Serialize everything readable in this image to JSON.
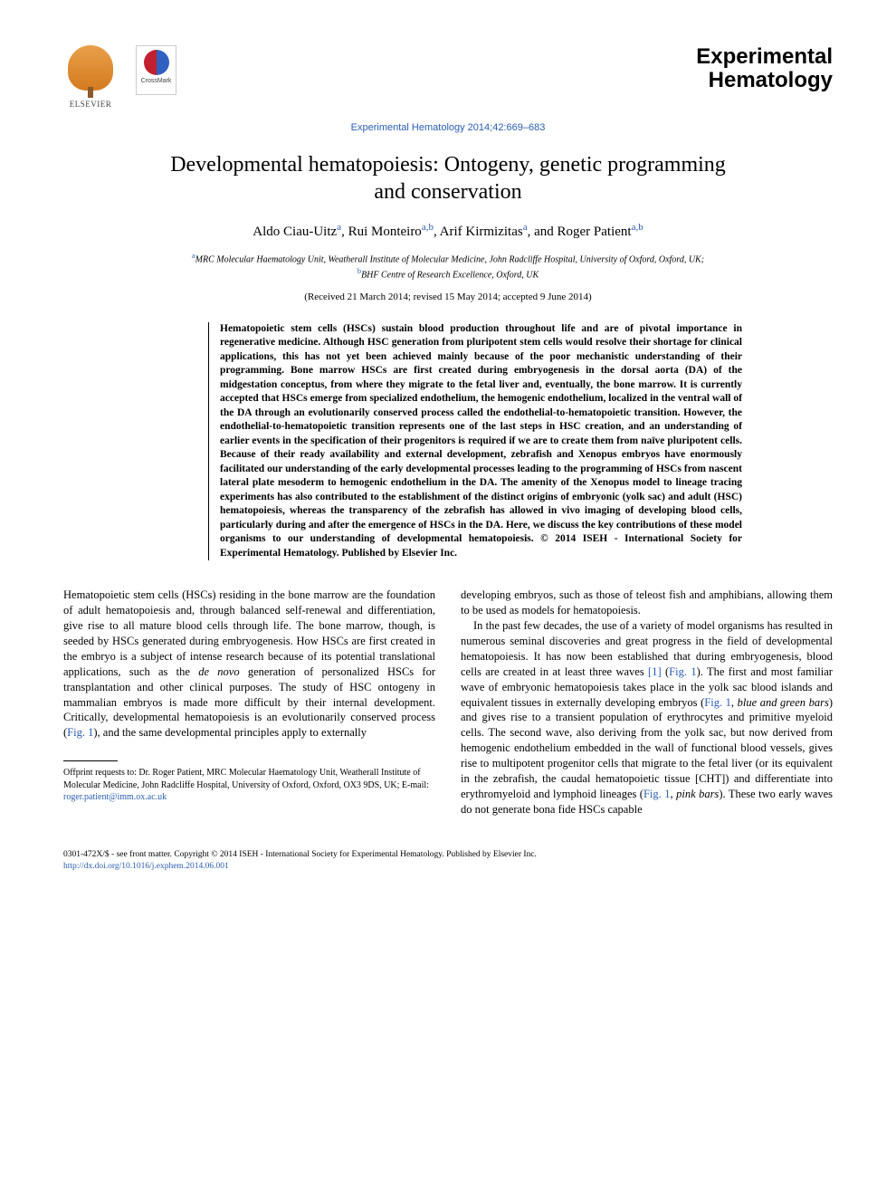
{
  "publisher_name": "ELSEVIER",
  "crossmark_label": "CrossMark",
  "journal_name_line1": "Experimental",
  "journal_name_line2": "Hematology",
  "citation": "Experimental Hematology 2014;42:669–683",
  "title": "Developmental hematopoiesis: Ontogeny, genetic programming and conservation",
  "authors": [
    {
      "name": "Aldo Ciau-Uitz",
      "affil": "a"
    },
    {
      "name": "Rui Monteiro",
      "affil": "a,b"
    },
    {
      "name": "Arif Kirmizitas",
      "affil": "a"
    },
    {
      "name": "Roger Patient",
      "affil": "a,b"
    }
  ],
  "affiliations": {
    "a": "MRC Molecular Haematology Unit, Weatherall Institute of Molecular Medicine, John Radcliffe Hospital, University of Oxford, Oxford, UK;",
    "b": "BHF Centre of Research Excellence, Oxford, UK"
  },
  "dates": "(Received 21 March 2014; revised 15 May 2014; accepted 9 June 2014)",
  "abstract": "Hematopoietic stem cells (HSCs) sustain blood production throughout life and are of pivotal importance in regenerative medicine. Although HSC generation from pluripotent stem cells would resolve their shortage for clinical applications, this has not yet been achieved mainly because of the poor mechanistic understanding of their programming. Bone marrow HSCs are first created during embryogenesis in the dorsal aorta (DA) of the midgestation conceptus, from where they migrate to the fetal liver and, eventually, the bone marrow. It is currently accepted that HSCs emerge from specialized endothelium, the hemogenic endothelium, localized in the ventral wall of the DA through an evolutionarily conserved process called the endothelial-to-hematopoietic transition. However, the endothelial-to-hematopoietic transition represents one of the last steps in HSC creation, and an understanding of earlier events in the specification of their progenitors is required if we are to create them from naïve pluripotent cells. Because of their ready availability and external development, zebrafish and Xenopus embryos have enormously facilitated our understanding of the early developmental processes leading to the programming of HSCs from nascent lateral plate mesoderm to hemogenic endothelium in the DA. The amenity of the Xenopus model to lineage tracing experiments has also contributed to the establishment of the distinct origins of embryonic (yolk sac) and adult (HSC) hematopoiesis, whereas the transparency of the zebrafish has allowed in vivo imaging of developing blood cells, particularly during and after the emergence of HSCs in the DA. Here, we discuss the key contributions of these model organisms to our understanding of developmental hematopoiesis.   © 2014 ISEH - International Society for Experimental Hematology.   Published by Elsevier Inc.",
  "body": {
    "col1_p1_a": "Hematopoietic stem cells (HSCs) residing in the bone marrow are the foundation of adult hematopoiesis and, through balanced self-renewal and differentiation, give rise to all mature blood cells through life. The bone marrow, though, is seeded by HSCs generated during embryogenesis. How HSCs are first created in the embryo is a subject of intense research because of its potential translational applications, such as the ",
    "col1_p1_italic": "de novo",
    "col1_p1_b": " generation of personalized HSCs for transplantation and other clinical purposes. The study of HSC ontogeny in mammalian embryos is made more difficult by their internal development. Critically, developmental hematopoiesis is an evolutionarily conserved process (",
    "col1_p1_fig": "Fig. 1",
    "col1_p1_c": "), and the same developmental principles apply to externally",
    "col2_p1": "developing embryos, such as those of teleost fish and amphibians, allowing them to be used as models for hematopoiesis.",
    "col2_p2_a": "In the past few decades, the use of a variety of model organisms has resulted in numerous seminal discoveries and great progress in the field of developmental hematopoiesis. It has now been established that during embryogenesis, blood cells are created in at least three waves ",
    "col2_p2_ref": "[1]",
    "col2_p2_b": " (",
    "col2_p2_fig1": "Fig. 1",
    "col2_p2_c": "). The first and most familiar wave of embryonic hematopoiesis takes place in the yolk sac blood islands and equivalent tissues in externally developing embryos (",
    "col2_p2_fig2": "Fig. 1",
    "col2_p2_d": ", ",
    "col2_p2_italic1": "blue and green bars",
    "col2_p2_e": ") and gives rise to a transient population of erythrocytes and primitive myeloid cells. The second wave, also deriving from the yolk sac, but now derived from hemogenic endothelium embedded in the wall of functional blood vessels, gives rise to multipotent progenitor cells that migrate to the fetal liver (or its equivalent in the zebrafish, the caudal hematopoietic tissue [CHT]) and differentiate into erythromyeloid and lymphoid lineages (",
    "col2_p2_fig3": "Fig. 1",
    "col2_p2_f": ", ",
    "col2_p2_italic2": "pink bars",
    "col2_p2_g": "). These two early waves do not generate bona fide HSCs capable"
  },
  "offprint": {
    "label": "Offprint requests to: Dr. Roger Patient, MRC Molecular Haematology Unit, Weatherall Institute of Molecular Medicine, John Radcliffe Hospital, University of Oxford, Oxford, OX3 9DS, UK; E-mail: ",
    "email": "roger.patient@imm.ox.ac.uk"
  },
  "footer": {
    "copyright": "0301-472X/$ - see front matter. Copyright © 2014 ISEH - International Society for Experimental Hematology. Published by Elsevier Inc.",
    "doi": "http://dx.doi.org/10.1016/j.exphem.2014.06.001"
  },
  "colors": {
    "link": "#2a5db0",
    "text": "#000000",
    "background": "#ffffff"
  }
}
